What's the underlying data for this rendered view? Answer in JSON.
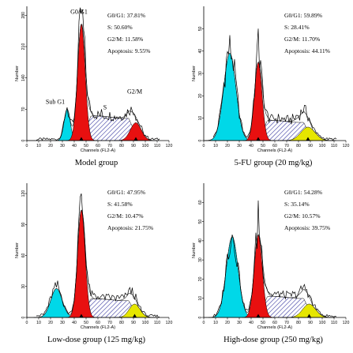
{
  "chart_data": [
    {
      "type": "area",
      "caption": "Model group",
      "xlabel": "Channels (FL2-A)",
      "ylabel": "Number",
      "xlim": [
        0,
        120
      ],
      "ylim": [
        0,
        300
      ],
      "xticks": [
        0,
        10,
        20,
        30,
        40,
        50,
        60,
        70,
        80,
        90,
        100,
        110,
        120
      ],
      "yticks": [
        0,
        70,
        140,
        210,
        280
      ],
      "stats": [
        "G0/G1: 37.81%",
        "S: 50.60%",
        "G2/M: 11.58%",
        "Apoptosis: 9.55%"
      ],
      "peak_labels": [
        {
          "text": "G0/G1",
          "x": 44,
          "y": 283
        },
        {
          "text": "Sub G1",
          "x": 24,
          "y": 82
        },
        {
          "text": "S",
          "x": 66,
          "y": 70
        },
        {
          "text": "G2/M",
          "x": 91,
          "y": 105
        }
      ],
      "components": {
        "apoptosis": {
          "center": 34,
          "sigma": 2.6,
          "height": 70
        },
        "g1": {
          "center": 46,
          "sigma": 3.2,
          "height": 260
        },
        "s": {
          "start": 46,
          "end": 94,
          "height": 55
        },
        "g2": {
          "center": 92,
          "sigma": 4.6,
          "height": 40
        }
      },
      "histogram_peak": 285,
      "colors": {
        "apoptosis": "#00d8e8",
        "g1": "#e81010",
        "g2": "#e81010",
        "s_hatch": "#2b2b9a"
      }
    },
    {
      "type": "area",
      "caption": "5-FU group (20 mg/kg)",
      "xlabel": "Channels (FL2-A)",
      "ylabel": "Number",
      "xlim": [
        0,
        120
      ],
      "ylim": [
        0,
        60
      ],
      "xticks": [
        0,
        10,
        20,
        30,
        40,
        50,
        60,
        70,
        80,
        90,
        100,
        110,
        120
      ],
      "yticks": [
        0,
        10,
        20,
        30,
        40,
        50
      ],
      "stats": [
        "G0/G1: 59.89%",
        "S: 28.41%",
        "G2/M: 11.70%",
        "Apoptosis: 44.11%"
      ],
      "peak_labels": [],
      "components": {
        "apoptosis": {
          "center": 22,
          "sigma": 5.2,
          "height": 39
        },
        "g1": {
          "center": 46,
          "sigma": 3.2,
          "height": 35
        },
        "s": {
          "start": 46,
          "end": 92,
          "height": 9
        },
        "g2": {
          "center": 88,
          "sigma": 6.0,
          "height": 6
        }
      },
      "histogram_peak": 50,
      "colors": {
        "apoptosis": "#00d8e8",
        "g1": "#e81010",
        "g2": "#e6e600",
        "s_hatch": "#2b2b9a"
      }
    },
    {
      "type": "area",
      "caption": "Low-dose group (125 mg/kg)",
      "xlabel": "Channels (FL2-A)",
      "ylabel": "Number",
      "xlim": [
        0,
        120
      ],
      "ylim": [
        0,
        130
      ],
      "xticks": [
        0,
        10,
        20,
        30,
        40,
        50,
        60,
        70,
        80,
        90,
        100,
        110,
        120
      ],
      "yticks": [
        0,
        30,
        60,
        90,
        120
      ],
      "stats": [
        "G0/G1: 47.95%",
        "S: 41.58%",
        "G2/M: 10.47%",
        "Apoptosis: 21.75%"
      ],
      "peak_labels": [],
      "components": {
        "apoptosis": {
          "center": 25,
          "sigma": 4.8,
          "height": 28
        },
        "g1": {
          "center": 46,
          "sigma": 3.2,
          "height": 104
        },
        "s": {
          "start": 46,
          "end": 94,
          "height": 18
        },
        "g2": {
          "center": 91,
          "sigma": 4.6,
          "height": 13
        }
      },
      "histogram_peak": 120,
      "colors": {
        "apoptosis": "#00d8e8",
        "g1": "#e81010",
        "g2": "#e6e600",
        "s_hatch": "#2b2b9a"
      }
    },
    {
      "type": "area",
      "caption": "High-dose group (250 mg/kg)",
      "xlabel": "Channels (FL2-A)",
      "ylabel": "Number",
      "xlim": [
        0,
        120
      ],
      "ylim": [
        0,
        70
      ],
      "xticks": [
        0,
        10,
        20,
        30,
        40,
        50,
        60,
        70,
        80,
        90,
        100,
        110,
        120
      ],
      "yticks": [
        0,
        10,
        20,
        30,
        40,
        50,
        60
      ],
      "stats": [
        "G0/G1: 54.28%",
        "S: 35.14%",
        "G2/M: 10.57%",
        "Apoptosis: 39.75%"
      ],
      "peak_labels": [],
      "components": {
        "apoptosis": {
          "center": 24,
          "sigma": 5.0,
          "height": 42
        },
        "g1": {
          "center": 46,
          "sigma": 3.4,
          "height": 43
        },
        "s": {
          "start": 46,
          "end": 92,
          "height": 11
        },
        "g2": {
          "center": 89,
          "sigma": 5.5,
          "height": 7
        }
      },
      "histogram_peak": 61,
      "colors": {
        "apoptosis": "#00d8e8",
        "g1": "#e81010",
        "g2": "#e6e600",
        "s_hatch": "#2b2b9a"
      }
    }
  ]
}
